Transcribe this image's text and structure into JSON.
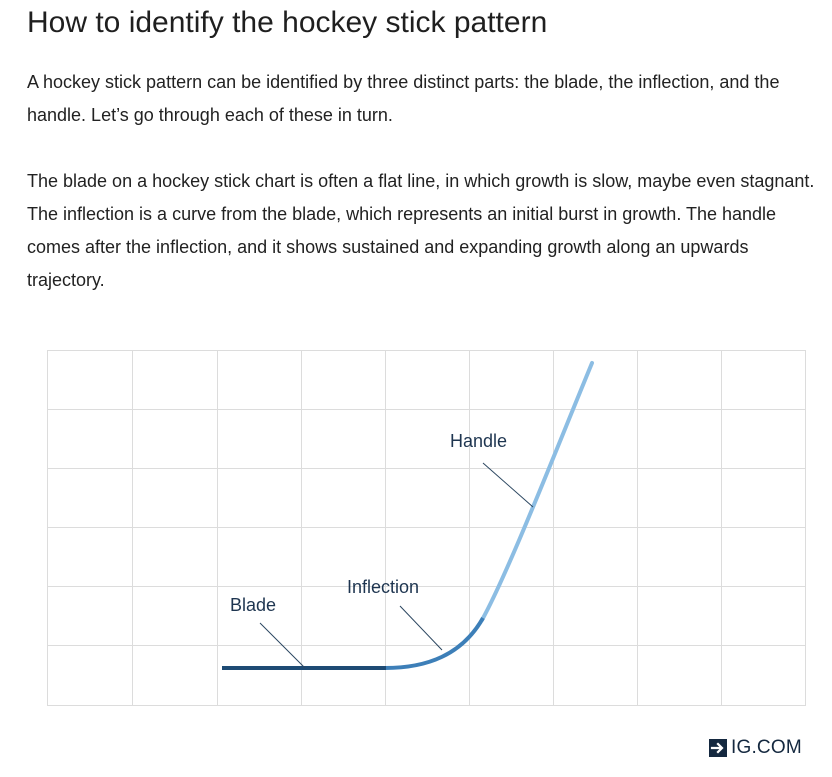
{
  "article": {
    "title": "How to identify the hockey stick pattern",
    "paragraphs": [
      "A hockey stick pattern can be identified by three distinct parts: the blade, the inflection, and the handle. Let’s go through each of these in turn.",
      "The blade on a hockey stick chart is often a flat line, in which growth is slow, maybe even stagnant. The inflection is a curve from the blade, which represents an initial burst in growth. The handle comes after the inflection, and it shows sustained and expanding growth along an upwards trajectory."
    ]
  },
  "diagram": {
    "labels": {
      "blade": "Blade",
      "inflection": "Inflection",
      "handle": "Handle"
    },
    "colors": {
      "blade": "#1e4b74",
      "inflection": "#3d7fb8",
      "handle": "#8cbde3",
      "grid": "#dcdcdc",
      "leader": "#2b4660"
    }
  },
  "brand": {
    "icon": "arrow-box-icon",
    "text": "IG.COM"
  }
}
